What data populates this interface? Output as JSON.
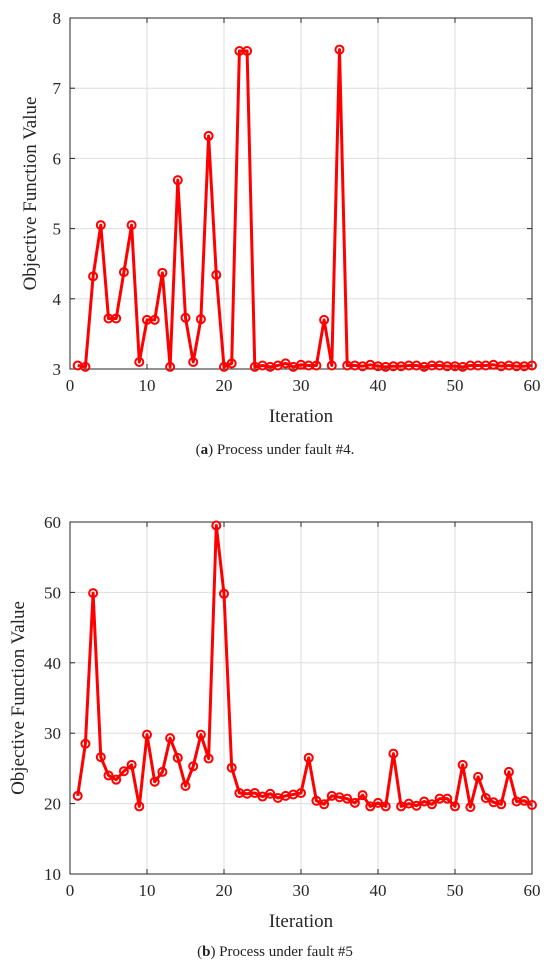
{
  "colors": {
    "series": "#ff0000",
    "grid": "#dddddd",
    "axis": "#262626"
  },
  "chart_data": [
    {
      "type": "line",
      "xlabel": "Iteration",
      "ylabel": "Objective Function Value",
      "xlim": [
        0,
        60
      ],
      "ylim": [
        3,
        8
      ],
      "xticks": [
        0,
        10,
        20,
        30,
        40,
        50,
        60
      ],
      "yticks": [
        3,
        4,
        5,
        6,
        7,
        8
      ],
      "grid": true,
      "marker": "circle",
      "caption_letter": "a",
      "caption_text": ") Process under fault #4.",
      "x": [
        1,
        2,
        3,
        4,
        5,
        6,
        7,
        8,
        9,
        10,
        11,
        12,
        13,
        14,
        15,
        16,
        17,
        18,
        19,
        20,
        21,
        22,
        23,
        24,
        25,
        26,
        27,
        28,
        29,
        30,
        31,
        32,
        33,
        34,
        35,
        36,
        37,
        38,
        39,
        40,
        41,
        42,
        43,
        44,
        45,
        46,
        47,
        48,
        49,
        50,
        51,
        52,
        53,
        54,
        55,
        56,
        57,
        58,
        59,
        60
      ],
      "y": [
        3.05,
        3.03,
        4.32,
        5.05,
        3.72,
        3.72,
        4.38,
        5.05,
        3.1,
        3.7,
        3.7,
        4.37,
        3.03,
        5.69,
        3.73,
        3.1,
        3.71,
        6.32,
        4.34,
        3.03,
        3.08,
        7.53,
        7.53,
        3.03,
        3.05,
        3.03,
        3.05,
        3.08,
        3.03,
        3.06,
        3.05,
        3.05,
        3.7,
        3.05,
        7.55,
        3.05,
        3.05,
        3.04,
        3.06,
        3.04,
        3.03,
        3.04,
        3.04,
        3.05,
        3.05,
        3.03,
        3.05,
        3.05,
        3.04,
        3.04,
        3.03,
        3.05,
        3.05,
        3.05,
        3.06,
        3.04,
        3.05,
        3.04,
        3.04,
        3.05
      ]
    },
    {
      "type": "line",
      "xlabel": "Iteration",
      "ylabel": "Objective Function Value",
      "xlim": [
        0,
        60
      ],
      "ylim": [
        10,
        60
      ],
      "xticks": [
        0,
        10,
        20,
        30,
        40,
        50,
        60
      ],
      "yticks": [
        10,
        20,
        30,
        40,
        50,
        60
      ],
      "grid": true,
      "marker": "circle",
      "caption_letter": "b",
      "caption_text": ") Process under fault #5",
      "x": [
        1,
        2,
        3,
        4,
        5,
        6,
        7,
        8,
        9,
        10,
        11,
        12,
        13,
        14,
        15,
        16,
        17,
        18,
        19,
        20,
        21,
        22,
        23,
        24,
        25,
        26,
        27,
        28,
        29,
        30,
        31,
        32,
        33,
        34,
        35,
        36,
        37,
        38,
        39,
        40,
        41,
        42,
        43,
        44,
        45,
        46,
        47,
        48,
        49,
        50,
        51,
        52,
        53,
        54,
        55,
        56,
        57,
        58,
        59,
        60
      ],
      "y": [
        21.1,
        28.5,
        49.9,
        26.6,
        24.0,
        23.4,
        24.6,
        25.5,
        19.6,
        29.8,
        23.1,
        24.5,
        29.3,
        26.5,
        22.5,
        25.3,
        29.8,
        26.4,
        59.5,
        49.8,
        25.1,
        21.5,
        21.4,
        21.5,
        21.0,
        21.4,
        20.8,
        21.1,
        21.3,
        21.5,
        26.5,
        20.4,
        19.9,
        21.1,
        20.9,
        20.7,
        20.1,
        21.2,
        19.6,
        20.1,
        19.6,
        27.1,
        19.6,
        20.0,
        19.7,
        20.3,
        19.9,
        20.7,
        20.7,
        19.6,
        25.5,
        19.5,
        23.8,
        20.8,
        20.2,
        19.9,
        24.5,
        20.3,
        20.4,
        19.8
      ]
    }
  ]
}
